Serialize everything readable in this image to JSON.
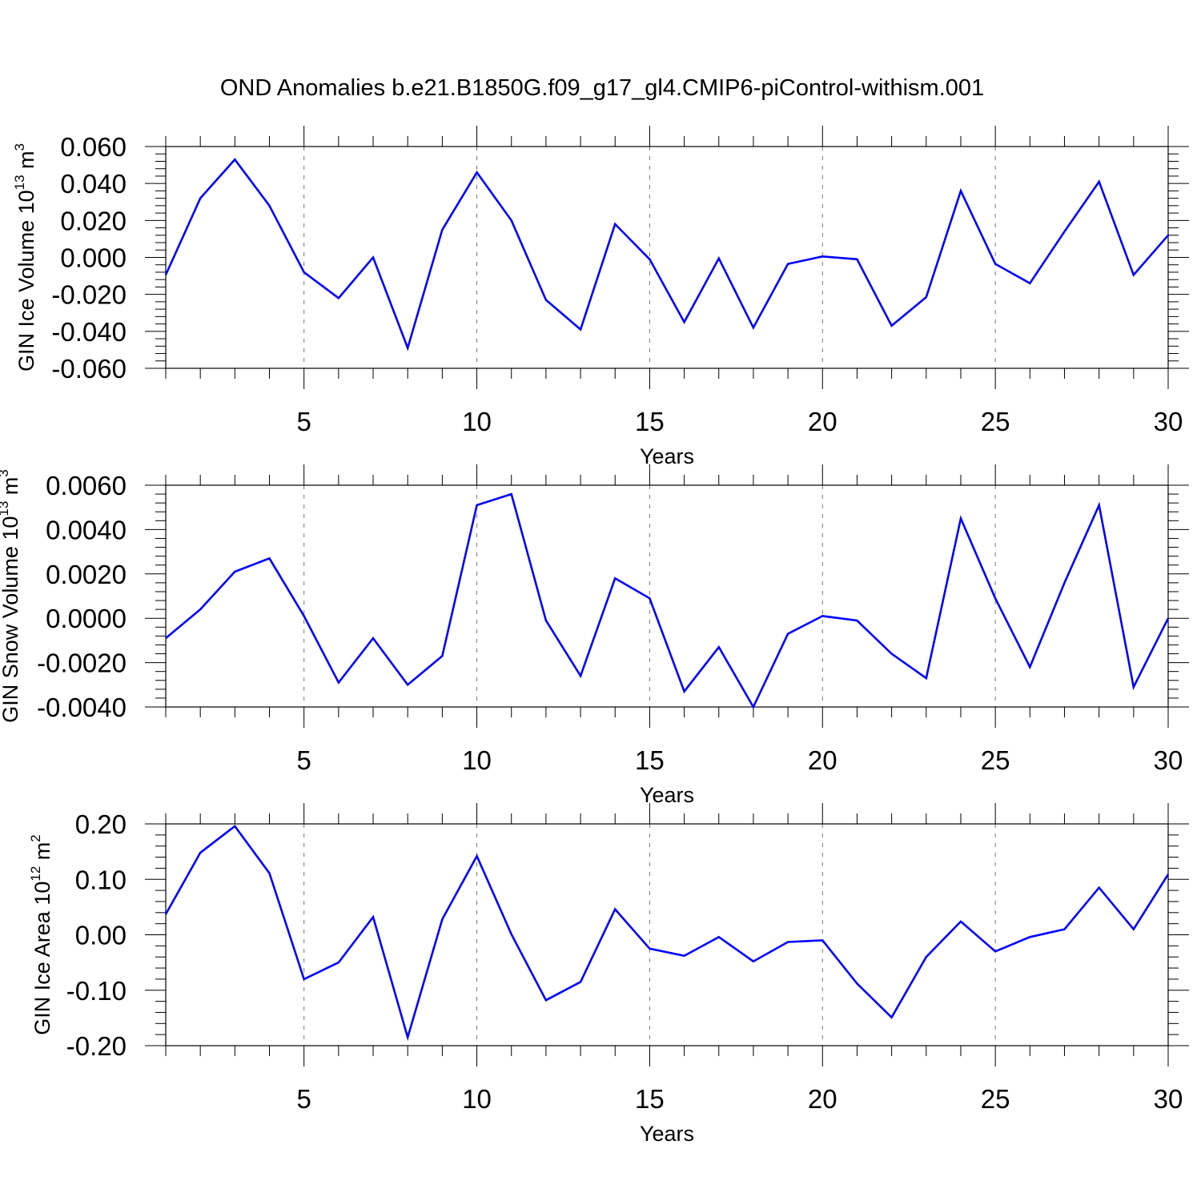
{
  "figure": {
    "title": "OND Anomalies b.e21.B1850G.f09_g17_gl4.CMIP6-piControl-withism.001",
    "line_color": "#0000ff"
  },
  "chart_data": [
    {
      "type": "line",
      "xlabel": "Years",
      "ylabel": "GIN Ice Volume 10",
      "ylabel_exp": "13",
      "ylabel_unit": " m",
      "ylabel_unit_exp": "3",
      "xlim": [
        1,
        30
      ],
      "ylim": [
        -0.06,
        0.06
      ],
      "xticks": [
        5,
        10,
        15,
        20,
        25,
        30
      ],
      "xtick_labels": [
        "5",
        "10",
        "15",
        "20",
        "25",
        "30"
      ],
      "yticks": [
        0.06,
        0.04,
        0.02,
        0.0,
        -0.02,
        -0.04,
        -0.06
      ],
      "ytick_labels": [
        "0.060",
        "0.040",
        "0.020",
        "0.000",
        "-0.020",
        "-0.040",
        "-0.060"
      ],
      "grid_x": true,
      "x": [
        1,
        2,
        3,
        4,
        5,
        6,
        7,
        8,
        9,
        10,
        11,
        12,
        13,
        14,
        15,
        16,
        17,
        18,
        19,
        20,
        21,
        22,
        23,
        24,
        25,
        26,
        27,
        28,
        29,
        30
      ],
      "values": [
        -0.0095,
        0.032,
        0.053,
        0.028,
        -0.008,
        -0.022,
        0.0,
        -0.049,
        0.015,
        0.046,
        0.02,
        -0.023,
        -0.039,
        0.018,
        -0.001,
        -0.035,
        -0.0005,
        -0.038,
        -0.0035,
        0.0005,
        -0.001,
        -0.037,
        -0.0215,
        0.036,
        -0.0035,
        -0.014,
        0.014,
        0.041,
        -0.0095,
        0.012
      ]
    },
    {
      "type": "line",
      "xlabel": "Years",
      "ylabel": "GIN Snow Volume 10",
      "ylabel_exp": "13",
      "ylabel_unit": " m",
      "ylabel_unit_exp": "3",
      "xlim": [
        1,
        30
      ],
      "ylim": [
        -0.004,
        0.006
      ],
      "xticks": [
        5,
        10,
        15,
        20,
        25,
        30
      ],
      "xtick_labels": [
        "5",
        "10",
        "15",
        "20",
        "25",
        "30"
      ],
      "yticks": [
        0.006,
        0.004,
        0.002,
        0.0,
        -0.002,
        -0.004
      ],
      "ytick_labels": [
        "0.0060",
        "0.0040",
        "0.0020",
        "0.0000",
        "-0.0020",
        "-0.0040"
      ],
      "grid_x": true,
      "x": [
        1,
        2,
        3,
        4,
        5,
        6,
        7,
        8,
        9,
        10,
        11,
        12,
        13,
        14,
        15,
        16,
        17,
        18,
        19,
        20,
        21,
        22,
        23,
        24,
        25,
        26,
        27,
        28,
        29,
        30
      ],
      "values": [
        -0.0009,
        0.0004,
        0.0021,
        0.0027,
        0.0001,
        -0.0029,
        -0.0009,
        -0.003,
        -0.0017,
        0.0051,
        0.0056,
        -0.0001,
        -0.0026,
        0.0018,
        0.0009,
        -0.0033,
        -0.0013,
        -0.004,
        -0.0007,
        0.0001,
        -0.0001,
        -0.0016,
        -0.0027,
        0.0045,
        0.0009,
        -0.0022,
        0.0016,
        0.0051,
        -0.0031,
        0.0
      ]
    },
    {
      "type": "line",
      "xlabel": "Years",
      "ylabel": "GIN Ice Area 10",
      "ylabel_exp": "12",
      "ylabel_unit": " m",
      "ylabel_unit_exp": "2",
      "xlim": [
        1,
        30
      ],
      "ylim": [
        -0.2,
        0.2
      ],
      "xticks": [
        5,
        10,
        15,
        20,
        25,
        30
      ],
      "xtick_labels": [
        "5",
        "10",
        "15",
        "20",
        "25",
        "30"
      ],
      "yticks": [
        0.2,
        0.1,
        0.0,
        -0.1,
        -0.2
      ],
      "ytick_labels": [
        "0.20",
        "0.10",
        "0.00",
        "-0.10",
        "-0.20"
      ],
      "grid_x": true,
      "x": [
        1,
        2,
        3,
        4,
        5,
        6,
        7,
        8,
        9,
        10,
        11,
        12,
        13,
        14,
        15,
        16,
        17,
        18,
        19,
        20,
        21,
        22,
        23,
        24,
        25,
        26,
        27,
        28,
        29,
        30
      ],
      "values": [
        0.037,
        0.148,
        0.196,
        0.111,
        -0.08,
        -0.05,
        0.032,
        -0.185,
        0.028,
        0.142,
        0.001,
        -0.118,
        -0.085,
        0.046,
        -0.025,
        -0.038,
        -0.004,
        -0.048,
        -0.013,
        -0.01,
        -0.088,
        -0.149,
        -0.04,
        0.024,
        -0.03,
        -0.004,
        0.01,
        0.085,
        0.01,
        0.109
      ]
    }
  ]
}
